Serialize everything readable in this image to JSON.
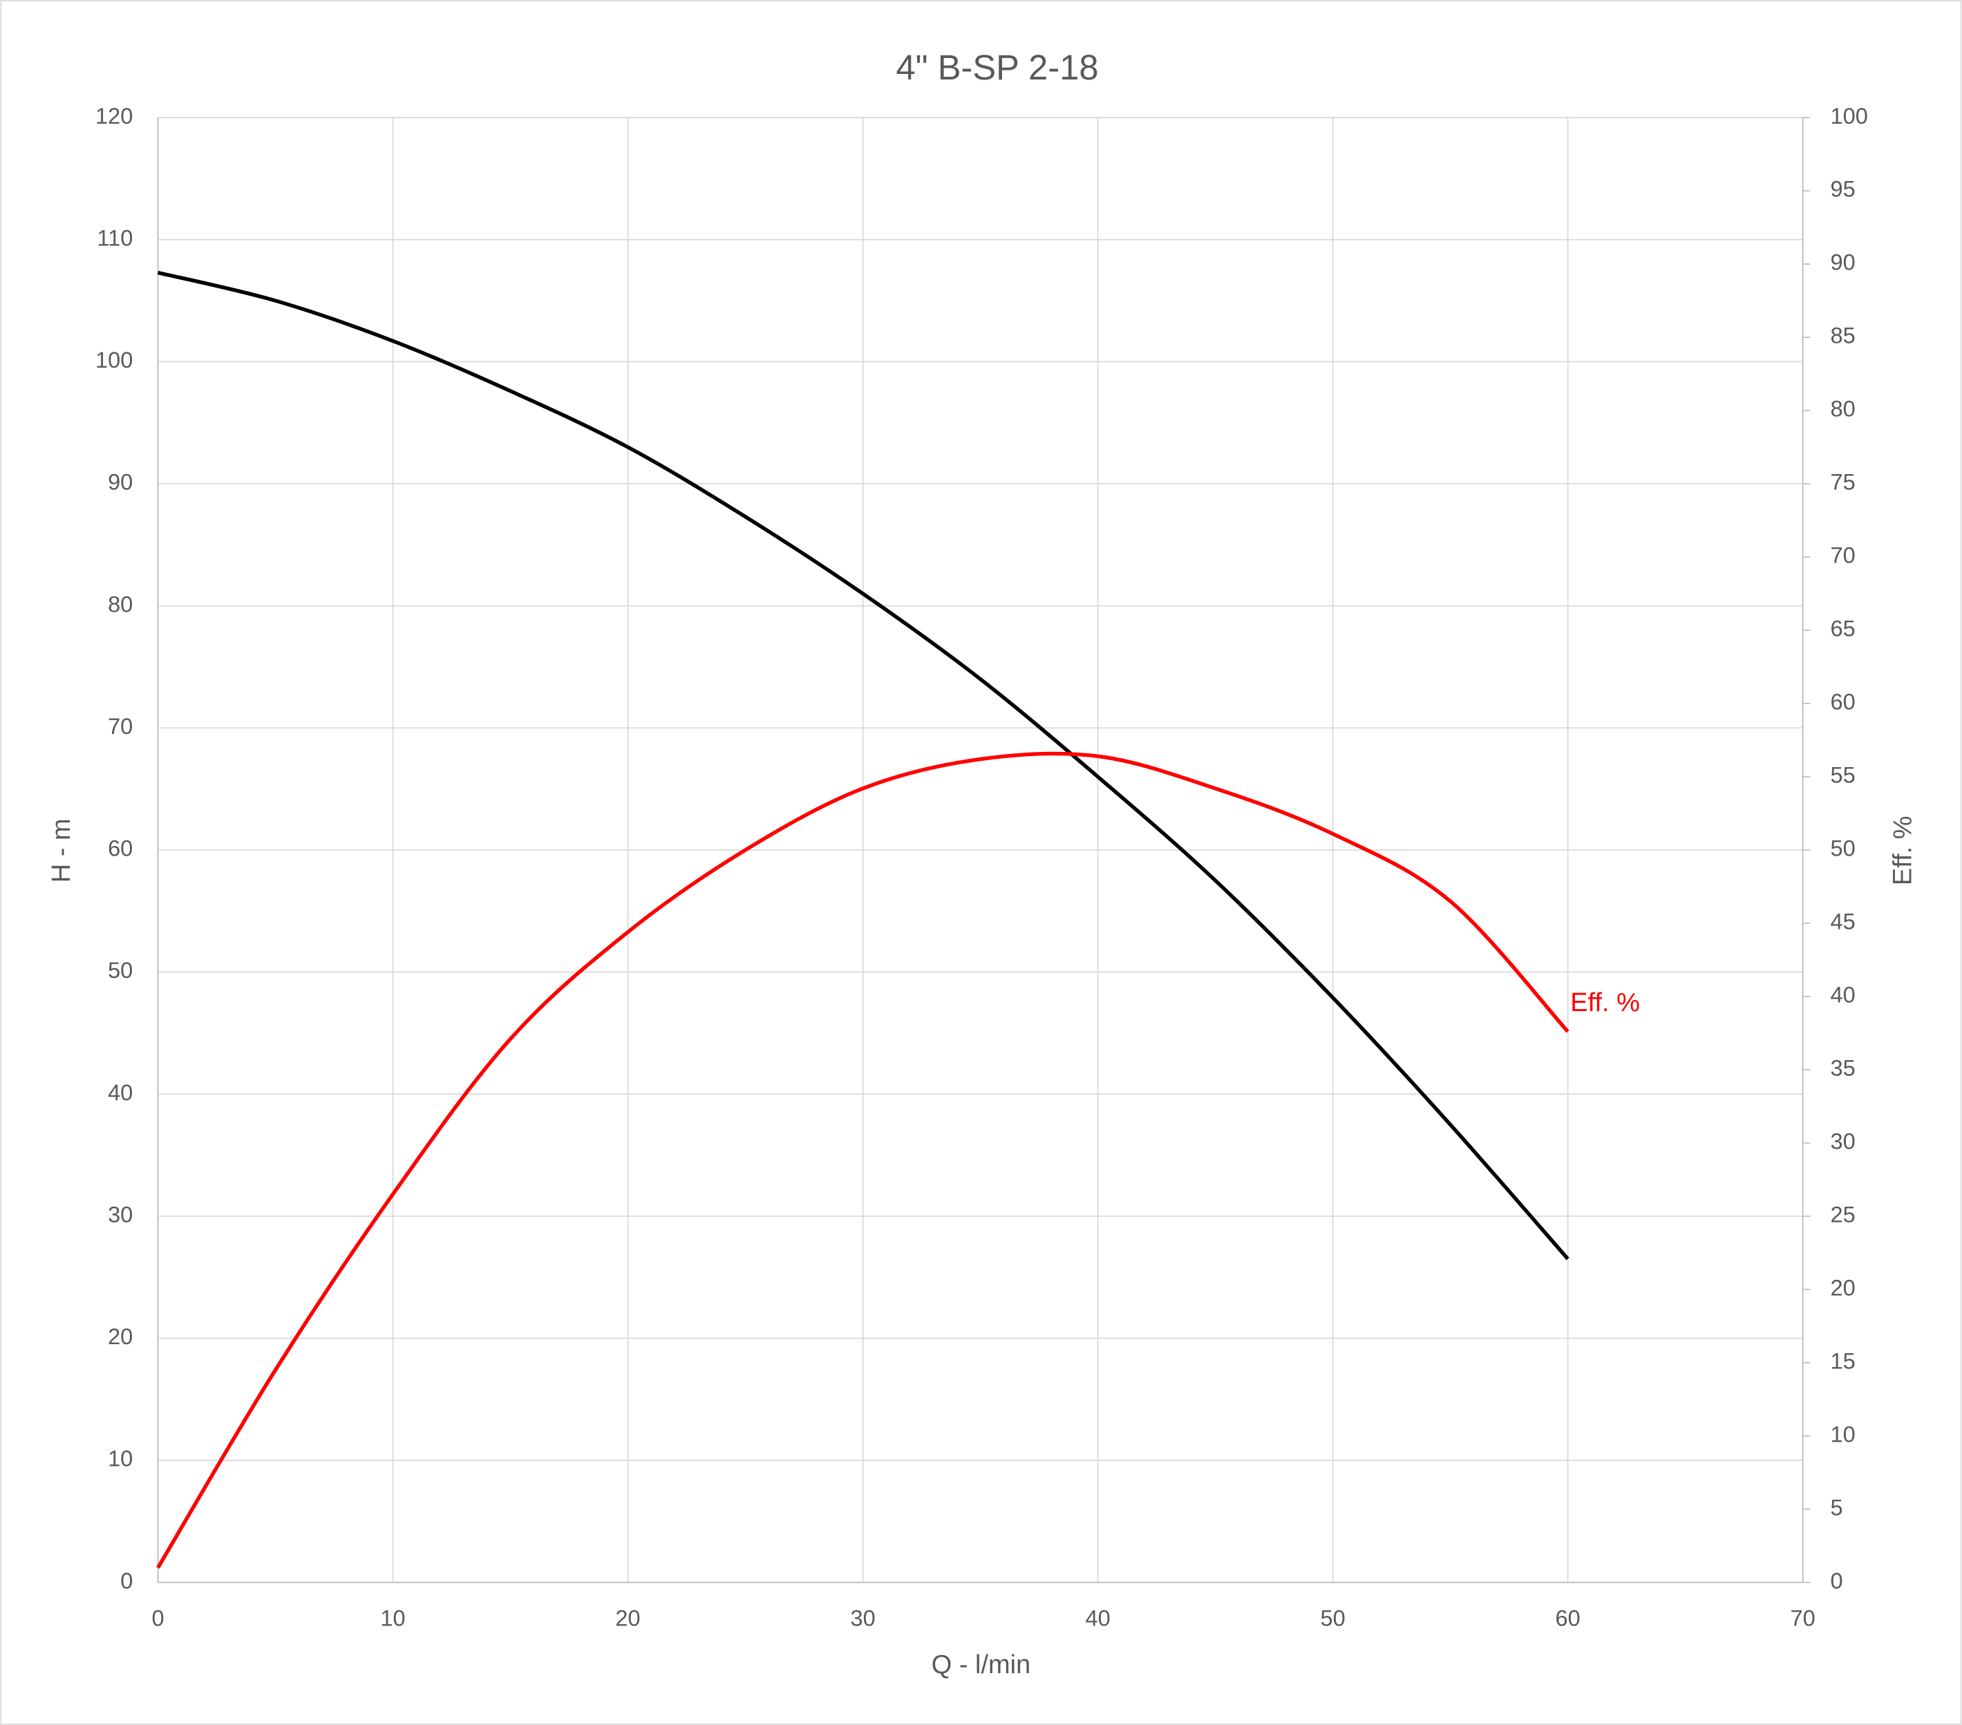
{
  "chart_data": {
    "type": "line",
    "title": "4\" B-SP 2-18",
    "x_label": "Q - l/min",
    "y_label": "H - m",
    "y2_label": "Eff. %",
    "x": [
      0,
      5,
      10,
      15,
      20,
      25,
      30,
      35,
      40,
      45,
      50,
      55,
      60
    ],
    "series": [
      {
        "color": "#000000",
        "values": [
          107.3,
          105,
          101.7,
          97.6,
          93,
          87.3,
          81,
          74,
          66,
          57.5,
          47.9,
          37.5,
          26.5
        ]
      },
      {
        "name": "Eff. %",
        "color": "#ff0000",
        "axis": "y2",
        "values": [
          1.0,
          14.5,
          26.5,
          37.1,
          44.4,
          50,
          54.2,
          56.2,
          56.4,
          54.2,
          51.1,
          46.5,
          37.6
        ]
      }
    ],
    "xlim": [
      0,
      70
    ],
    "xticks": [
      0,
      10,
      20,
      30,
      40,
      50,
      60,
      70
    ],
    "ylim": [
      0,
      120
    ],
    "yticks": [
      0,
      10,
      20,
      30,
      40,
      50,
      60,
      70,
      80,
      90,
      100,
      110,
      120
    ],
    "y2lim": [
      0,
      100
    ],
    "y2ticks": [
      0,
      5,
      10,
      15,
      20,
      25,
      30,
      35,
      40,
      45,
      50,
      55,
      60,
      65,
      70,
      75,
      80,
      85,
      90,
      95,
      100
    ],
    "grid": true
  }
}
